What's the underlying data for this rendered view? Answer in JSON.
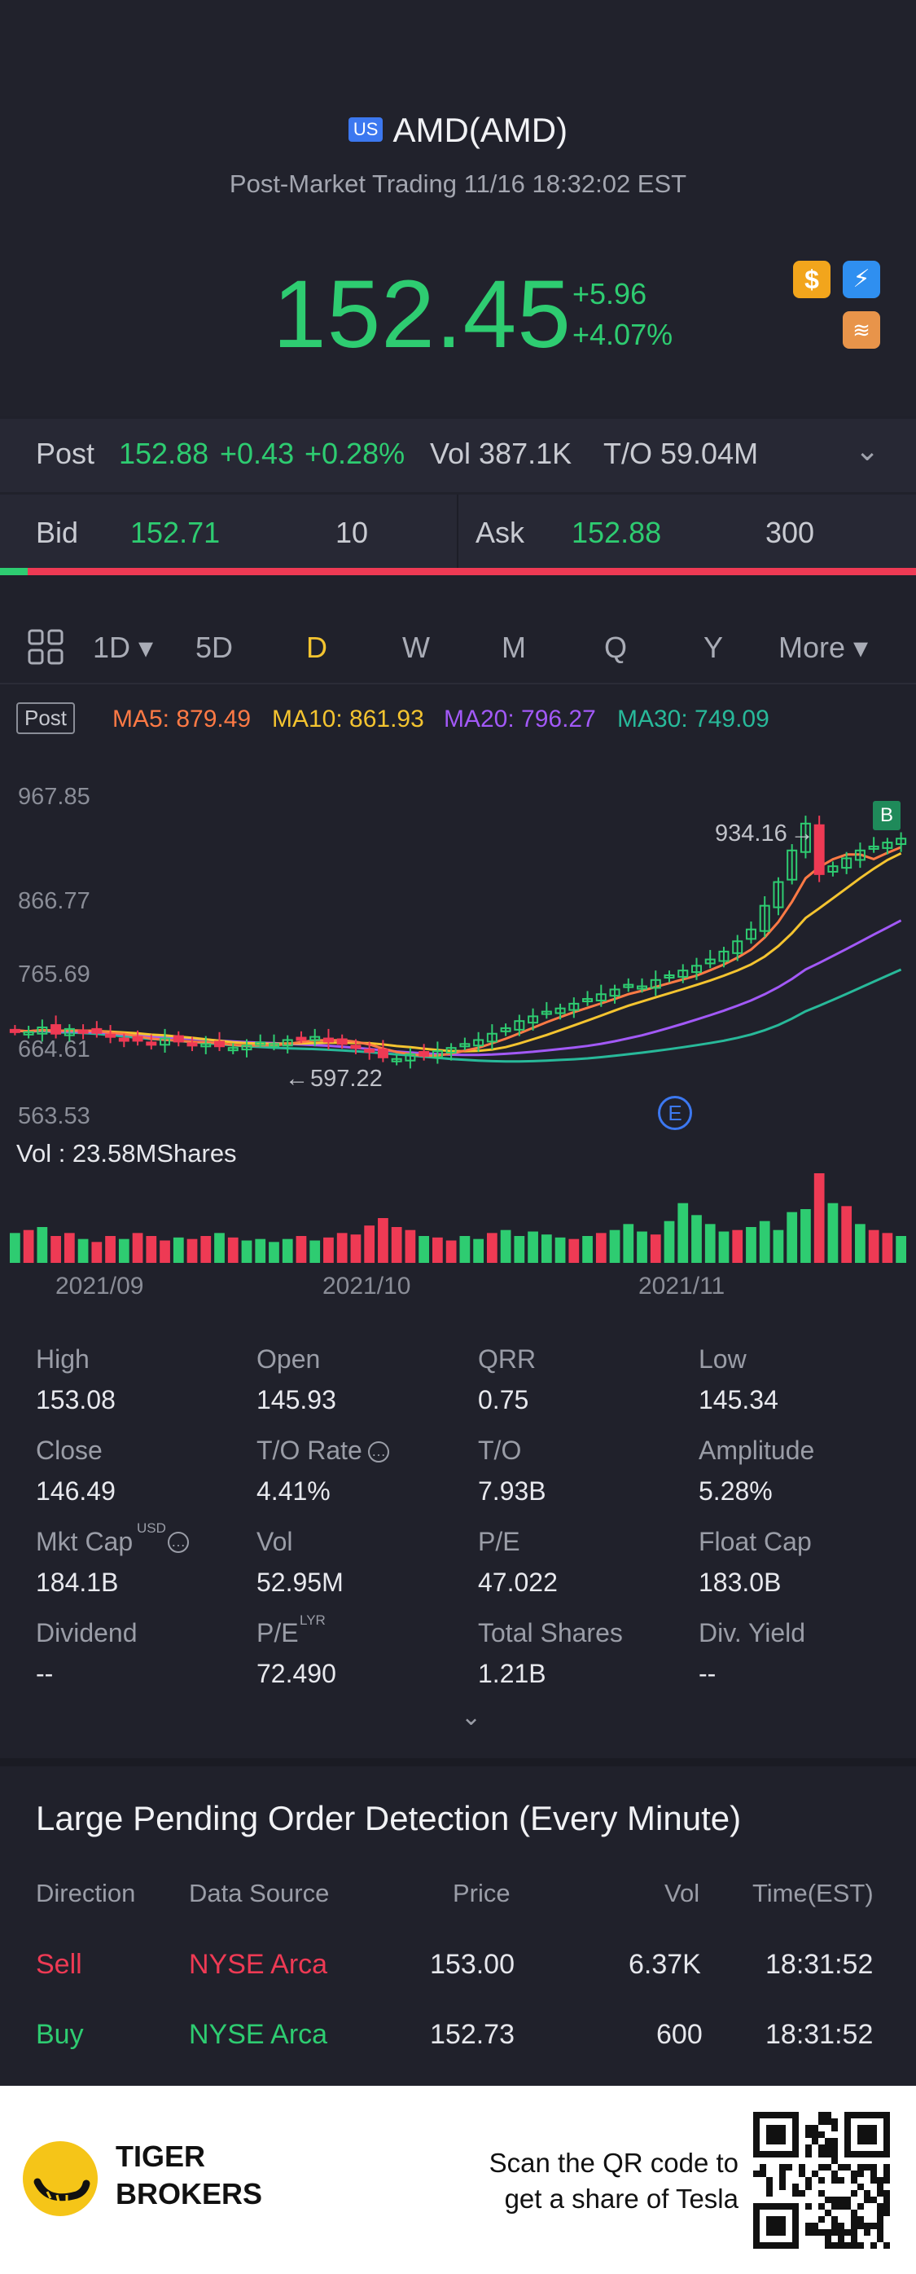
{
  "header": {
    "market_badge": "US",
    "title": "AMD(AMD)",
    "subtitle": "Post-Market Trading 11/16 18:32:02 EST",
    "price": "152.45",
    "change": "+5.96",
    "change_pct": "+4.07%",
    "icons": [
      "dollar-icon",
      "bolt-icon",
      "book-icon"
    ]
  },
  "post": {
    "label": "Post",
    "price": "152.88",
    "change": "+0.43",
    "change_pct": "+0.28%",
    "vol": "Vol 387.1K",
    "turnover": "T/O 59.04M"
  },
  "quote": {
    "bid_label": "Bid",
    "bid": "152.71",
    "bid_size": "10",
    "ask_label": "Ask",
    "ask": "152.88",
    "ask_size": "300"
  },
  "tabs": [
    "1D",
    "5D",
    "D",
    "W",
    "M",
    "Q",
    "Y",
    "More"
  ],
  "active_tab": "D",
  "ma": {
    "post_tag": "Post",
    "ma5": "MA5: 879.49",
    "ma10": "MA10: 861.93",
    "ma20": "MA20: 796.27",
    "ma30": "MA30: 749.09"
  },
  "chart_data": {
    "type": "candlestick",
    "y_ticks": [
      "967.85",
      "866.77",
      "765.69",
      "664.61",
      "563.53"
    ],
    "x_ticks": [
      "2021/09",
      "2021/10",
      "2021/11"
    ],
    "annotations": {
      "high": "934.16",
      "low": "597.22",
      "event": "E",
      "buy_marker": "B"
    },
    "volume_label": "Vol  : 23.58MShares",
    "colors": {
      "up": "#2ecc71",
      "down": "#ee3a54",
      "ma5": "#ff7a45",
      "ma10": "#f4c430",
      "ma20": "#a259f7",
      "ma30": "#28b99a"
    },
    "closes": [
      672,
      670,
      676,
      668,
      674,
      671,
      669,
      664,
      661,
      659,
      656,
      662,
      658,
      654,
      655,
      652,
      650,
      653,
      657,
      655,
      660,
      662,
      664,
      658,
      655,
      650,
      645,
      638,
      636,
      642,
      640,
      646,
      650,
      655,
      660,
      668,
      675,
      684,
      690,
      696,
      700,
      706,
      712,
      718,
      724,
      730,
      728,
      736,
      742,
      748,
      754,
      762,
      772,
      785,
      800,
      830,
      860,
      900,
      934,
      870,
      880,
      890,
      900,
      905,
      910,
      915
    ],
    "volume": [
      20,
      22,
      24,
      18,
      20,
      16,
      14,
      18,
      16,
      20,
      18,
      15,
      17,
      16,
      18,
      20,
      17,
      15,
      16,
      14,
      16,
      18,
      15,
      17,
      20,
      19,
      25,
      30,
      24,
      22,
      18,
      17,
      15,
      18,
      16,
      20,
      22,
      18,
      21,
      19,
      17,
      16,
      18,
      20,
      22,
      26,
      21,
      19,
      28,
      40,
      32,
      26,
      21,
      22,
      24,
      28,
      22,
      34,
      36,
      60,
      40,
      38,
      26,
      22,
      20,
      18
    ],
    "volume_up": [
      1,
      0,
      1,
      0,
      0,
      1,
      0,
      0,
      1,
      0,
      0,
      0,
      1,
      0,
      0,
      1,
      0,
      1,
      1,
      1,
      1,
      0,
      1,
      0,
      0,
      0,
      0,
      0,
      0,
      0,
      1,
      0,
      0,
      1,
      1,
      0,
      1,
      1,
      1,
      1,
      1,
      0,
      1,
      0,
      1,
      1,
      1,
      0,
      1,
      1,
      1,
      1,
      1,
      0,
      1,
      1,
      1,
      1,
      1,
      0,
      1,
      0,
      1,
      0,
      0,
      1
    ]
  },
  "stats": [
    {
      "k": "High",
      "v": "153.08"
    },
    {
      "k": "Open",
      "v": "145.93"
    },
    {
      "k": "QRR",
      "v": "0.75"
    },
    {
      "k": "Low",
      "v": "145.34"
    },
    {
      "k": "Close",
      "v": "146.49"
    },
    {
      "k": "T/O Rate",
      "v": "4.41%"
    },
    {
      "k": "T/O",
      "v": "7.93B"
    },
    {
      "k": "Amplitude",
      "v": "5.28%"
    },
    {
      "k": "Mkt Cap",
      "v": "184.1B"
    },
    {
      "k": "Vol",
      "v": "52.95M"
    },
    {
      "k": "P/E",
      "v": "47.022"
    },
    {
      "k": "Float Cap",
      "v": "183.0B"
    },
    {
      "k": "Dividend",
      "v": "--"
    },
    {
      "k": "P/E",
      "v": "72.490"
    },
    {
      "k": "Total Shares",
      "v": "1.21B"
    },
    {
      "k": "Div. Yield",
      "v": "--"
    }
  ],
  "stat_sup": {
    "usd": "USD",
    "lyr": "LYR"
  },
  "orders": {
    "title": "Large Pending Order Detection (Every Minute)",
    "columns": [
      "Direction",
      "Data Source",
      "Price",
      "Vol",
      "Time(EST)"
    ],
    "rows": [
      {
        "direction": "Sell",
        "source": "NYSE Arca",
        "price": "153.00",
        "vol": "6.37K",
        "time": "18:31:52"
      },
      {
        "direction": "Buy",
        "source": "NYSE Arca",
        "price": "152.73",
        "vol": "600",
        "time": "18:31:52"
      }
    ]
  },
  "footer": {
    "brand_line1": "TIGER",
    "brand_line2": "BROKERS",
    "scan_line1": "Scan the QR code to",
    "scan_line2": "get a share of Tesla"
  }
}
